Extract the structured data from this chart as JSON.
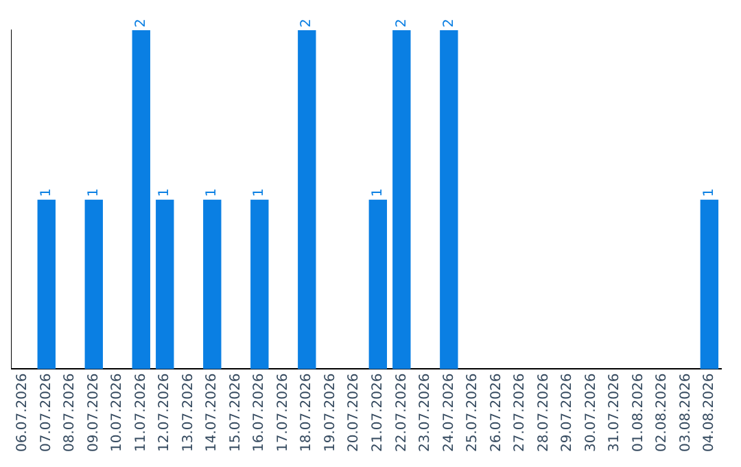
{
  "chart_data": {
    "type": "bar",
    "categories": [
      "06.07.2026",
      "07.07.2026",
      "08.07.2026",
      "09.07.2026",
      "10.07.2026",
      "11.07.2026",
      "12.07.2026",
      "13.07.2026",
      "14.07.2026",
      "15.07.2026",
      "16.07.2026",
      "17.07.2026",
      "18.07.2026",
      "19.07.2026",
      "20.07.2026",
      "21.07.2026",
      "22.07.2026",
      "23.07.2026",
      "24.07.2026",
      "25.07.2026",
      "26.07.2026",
      "27.07.2026",
      "28.07.2026",
      "29.07.2026",
      "30.07.2026",
      "31.07.2026",
      "01.08.2026",
      "02.08.2026",
      "03.08.2026",
      "04.08.2026"
    ],
    "values": [
      0,
      1,
      0,
      1,
      0,
      2,
      1,
      0,
      1,
      0,
      1,
      0,
      2,
      0,
      0,
      1,
      2,
      0,
      2,
      0,
      0,
      0,
      0,
      0,
      0,
      0,
      0,
      0,
      0,
      1
    ],
    "value_labels": [
      null,
      "1",
      null,
      "1",
      null,
      "2",
      "1",
      null,
      "1",
      null,
      "1",
      null,
      "2",
      null,
      null,
      "1",
      "2",
      null,
      "2",
      null,
      null,
      null,
      null,
      null,
      null,
      null,
      null,
      null,
      null,
      "1"
    ],
    "color": "#0a7fe3",
    "ylim": [
      0,
      2
    ],
    "tick_labels": "x",
    "grid": false,
    "legend": false
  }
}
